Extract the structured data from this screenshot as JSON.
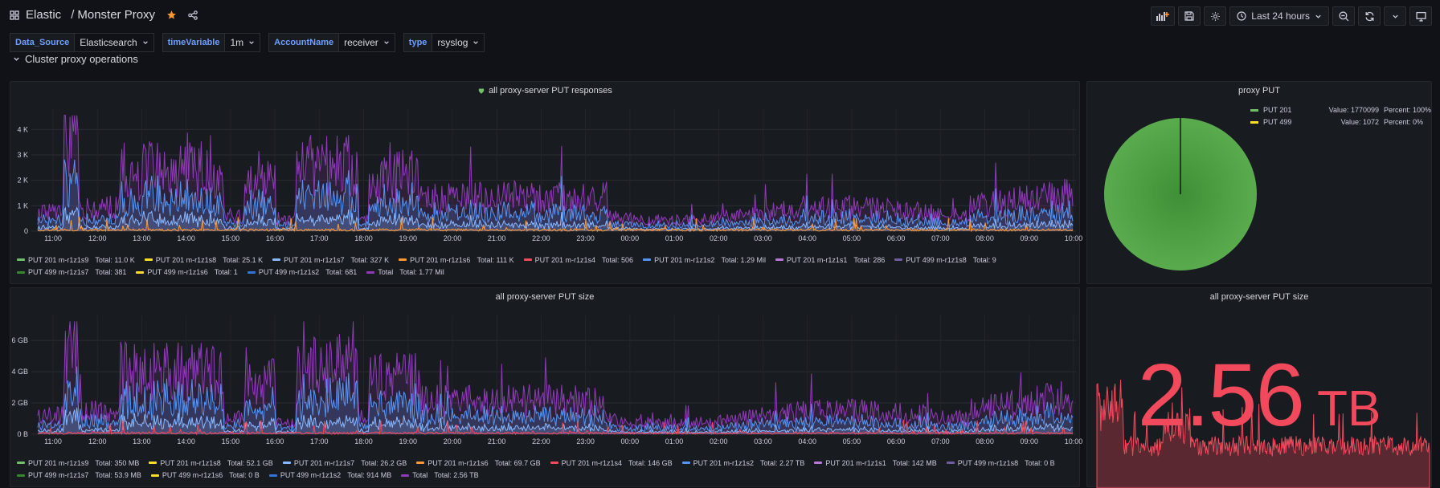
{
  "header": {
    "folder": "Elastic",
    "separator": "/",
    "dashboard": "Monster Proxy",
    "time_range": "Last 24 hours"
  },
  "variables": [
    {
      "label": "Data_Source",
      "value": "Elasticsearch"
    },
    {
      "label": "timeVariable",
      "value": "1m"
    },
    {
      "label": "AccountName",
      "value": "receiver"
    },
    {
      "label": "type",
      "value": "rsyslog"
    }
  ],
  "row_title": "Cluster proxy operations",
  "x_ticks": [
    "11:00",
    "12:00",
    "13:00",
    "14:00",
    "15:00",
    "16:00",
    "17:00",
    "18:00",
    "19:00",
    "20:00",
    "21:00",
    "22:00",
    "23:00",
    "00:00",
    "01:00",
    "02:00",
    "03:00",
    "04:00",
    "05:00",
    "06:00",
    "07:00",
    "08:00",
    "09:00",
    "10:00"
  ],
  "panel1": {
    "title": "all proxy-server PUT responses",
    "y_ticks": [
      "0",
      "1 K",
      "2 K",
      "3 K",
      "4 K"
    ],
    "legend": [
      {
        "label": "PUT 201 m-r1z1s9",
        "total": "Total: 11.0 K",
        "color": "#73bf69"
      },
      {
        "label": "PUT 201 m-r1z1s8",
        "total": "Total: 25.1 K",
        "color": "#fade2a"
      },
      {
        "label": "PUT 201 m-r1z1s7",
        "total": "Total: 327 K",
        "color": "#8ab8ff"
      },
      {
        "label": "PUT 201 m-r1z1s6",
        "total": "Total: 111 K",
        "color": "#ff9830"
      },
      {
        "label": "PUT 201 m-r1z1s4",
        "total": "Total: 506",
        "color": "#f2495c"
      },
      {
        "label": "PUT 201 m-r1z1s2",
        "total": "Total: 1.29 Mil",
        "color": "#5794f2"
      },
      {
        "label": "PUT 201 m-r1z1s1",
        "total": "Total: 286",
        "color": "#b877d9"
      },
      {
        "label": "PUT 499 m-r1z1s8",
        "total": "Total: 9",
        "color": "#705da0"
      },
      {
        "label": "PUT 499 m-r1z1s7",
        "total": "Total: 381",
        "color": "#37872d"
      },
      {
        "label": "PUT 499 m-r1z1s6",
        "total": "Total: 1",
        "color": "#fade2a"
      },
      {
        "label": "PUT 499 m-r1z1s2",
        "total": "Total: 681",
        "color": "#3274d9"
      },
      {
        "label": "Total",
        "total": "Total: 1.77 Mil",
        "color": "#8f3bb8"
      }
    ]
  },
  "panel2": {
    "title": "proxy PUT",
    "legend": [
      {
        "label": "PUT 201",
        "value": "Value: 1770099",
        "percent": "Percent: 100%",
        "color": "#73bf69"
      },
      {
        "label": "PUT 499",
        "value": "Value: 1072",
        "percent": "Percent: 0%",
        "color": "#fade2a"
      }
    ]
  },
  "panel3": {
    "title": "all proxy-server PUT size",
    "y_ticks": [
      "0 B",
      "2 GB",
      "4 GB",
      "6 GB"
    ],
    "legend": [
      {
        "label": "PUT 201 m-r1z1s9",
        "total": "Total: 350 MB",
        "color": "#73bf69"
      },
      {
        "label": "PUT 201 m-r1z1s8",
        "total": "Total: 52.1 GB",
        "color": "#fade2a"
      },
      {
        "label": "PUT 201 m-r1z1s7",
        "total": "Total: 26.2 GB",
        "color": "#8ab8ff"
      },
      {
        "label": "PUT 201 m-r1z1s6",
        "total": "Total: 69.7 GB",
        "color": "#ff9830"
      },
      {
        "label": "PUT 201 m-r1z1s4",
        "total": "Total: 146 GB",
        "color": "#f2495c"
      },
      {
        "label": "PUT 201 m-r1z1s2",
        "total": "Total: 2.27 TB",
        "color": "#5794f2"
      },
      {
        "label": "PUT 201 m-r1z1s1",
        "total": "Total: 142 MB",
        "color": "#b877d9"
      },
      {
        "label": "PUT 499 m-r1z1s8",
        "total": "Total: 0 B",
        "color": "#705da0"
      },
      {
        "label": "PUT 499 m-r1z1s7",
        "total": "Total: 53.9 MB",
        "color": "#37872d"
      },
      {
        "label": "PUT 499 m-r1z1s6",
        "total": "Total: 0 B",
        "color": "#fade2a"
      },
      {
        "label": "PUT 499 m-r1z1s2",
        "total": "Total: 914 MB",
        "color": "#3274d9"
      },
      {
        "label": "Total",
        "total": "Total: 2.56 TB",
        "color": "#8f3bb8"
      }
    ]
  },
  "panel4": {
    "title": "all proxy-server PUT size",
    "value": "2.56",
    "unit": "TB"
  },
  "colors": {
    "total_series": "#8f3bb8",
    "s2_series": "#5794f2",
    "s7_series": "#8ab8ff",
    "s6_series": "#ff9830",
    "s4_series": "#f2495c",
    "pie_main": "#56a64b",
    "stat": "#f2495c"
  }
}
